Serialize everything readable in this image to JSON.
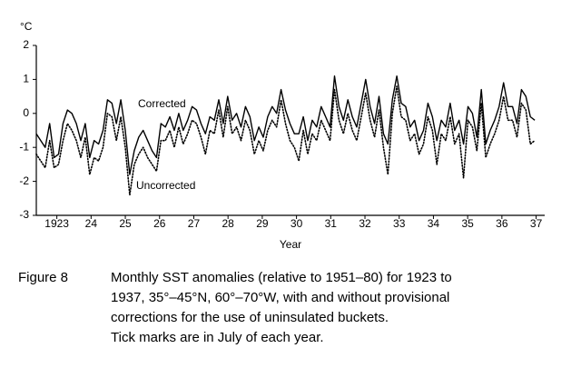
{
  "chart_data": {
    "type": "line",
    "y_unit_label": "°C",
    "x_axis_label": "Year",
    "caption_label": "Figure 8",
    "caption_lines": [
      "Monthly SST anomalies (relative to 1951–80) for 1923 to",
      "1937, 35°–45°N, 60°–70°W, with and without provisional",
      "corrections for the use of uninsulated buckets.",
      "Tick marks are in July of each year."
    ],
    "x": [
      1922.9,
      1923.03,
      1923.16,
      1923.29,
      1923.42,
      1923.55,
      1923.68,
      1923.81,
      1923.94,
      1924.07,
      1924.2,
      1924.33,
      1924.46,
      1924.59,
      1924.72,
      1924.85,
      1924.98,
      1925.11,
      1925.24,
      1925.37,
      1925.5,
      1925.63,
      1925.76,
      1925.89,
      1926.02,
      1926.15,
      1926.28,
      1926.41,
      1926.54,
      1926.67,
      1926.8,
      1926.93,
      1927.06,
      1927.19,
      1927.32,
      1927.45,
      1927.58,
      1927.71,
      1927.84,
      1927.97,
      1928.1,
      1928.23,
      1928.36,
      1928.49,
      1928.62,
      1928.75,
      1928.88,
      1929.01,
      1929.14,
      1929.27,
      1929.4,
      1929.53,
      1929.66,
      1929.79,
      1929.92,
      1930.05,
      1930.18,
      1930.31,
      1930.44,
      1930.57,
      1930.7,
      1930.83,
      1930.96,
      1931.09,
      1931.22,
      1931.35,
      1931.48,
      1931.61,
      1931.74,
      1931.87,
      1932.0,
      1932.13,
      1932.26,
      1932.39,
      1932.52,
      1932.65,
      1932.78,
      1932.91,
      1933.04,
      1933.17,
      1933.3,
      1933.43,
      1933.56,
      1933.69,
      1933.82,
      1933.95,
      1934.08,
      1934.21,
      1934.34,
      1934.47,
      1934.6,
      1934.73,
      1934.86,
      1934.99,
      1935.12,
      1935.25,
      1935.38,
      1935.51,
      1935.64,
      1935.77,
      1935.9,
      1936.03,
      1936.16,
      1936.29,
      1936.42,
      1936.55,
      1936.68,
      1936.81,
      1936.94,
      1937.07,
      1937.2,
      1937.33,
      1937.46
    ],
    "series": [
      {
        "name": "Corrected",
        "color": "#000000",
        "style": "solid",
        "values": [
          -0.6,
          -0.8,
          -1.0,
          -0.3,
          -1.3,
          -1.2,
          -0.3,
          0.1,
          0.0,
          -0.3,
          -0.8,
          -0.3,
          -1.3,
          -0.8,
          -0.9,
          -0.5,
          0.4,
          0.3,
          -0.3,
          0.4,
          -0.5,
          -1.8,
          -1.1,
          -0.7,
          -0.5,
          -0.8,
          -1.1,
          -1.3,
          -0.3,
          -0.4,
          -0.1,
          -0.5,
          0.0,
          -0.5,
          -0.2,
          0.2,
          0.1,
          -0.3,
          -0.6,
          -0.1,
          -0.2,
          0.4,
          -0.3,
          0.5,
          -0.2,
          0.0,
          -0.4,
          0.2,
          -0.1,
          -0.8,
          -0.4,
          -0.7,
          -0.1,
          0.2,
          0.0,
          0.7,
          0.1,
          -0.3,
          -0.6,
          -0.6,
          -0.1,
          -0.8,
          -0.2,
          -0.4,
          0.2,
          -0.1,
          -0.4,
          1.1,
          0.2,
          -0.2,
          0.4,
          -0.1,
          -0.4,
          0.3,
          1.0,
          0.2,
          -0.3,
          0.5,
          -0.6,
          -0.9,
          0.4,
          1.1,
          0.3,
          0.2,
          -0.4,
          -0.2,
          -0.8,
          -0.5,
          0.3,
          -0.1,
          -0.8,
          -0.2,
          -0.4,
          0.3,
          -0.5,
          -0.2,
          -0.9,
          0.2,
          0.0,
          -0.7,
          0.7,
          -0.9,
          -0.5,
          -0.2,
          0.2,
          0.9,
          0.2,
          0.2,
          -0.3,
          0.7,
          0.5,
          -0.1,
          -0.2
        ]
      },
      {
        "name": "Uncorrected",
        "color": "#000000",
        "style": "dotted",
        "values": [
          -1.2,
          -1.4,
          -1.6,
          -0.8,
          -1.6,
          -1.5,
          -0.8,
          -0.3,
          -0.5,
          -0.8,
          -1.3,
          -0.7,
          -1.8,
          -1.3,
          -1.4,
          -1.0,
          0.0,
          -0.1,
          -0.8,
          -0.1,
          -1.0,
          -2.4,
          -1.5,
          -1.2,
          -1.0,
          -1.3,
          -1.5,
          -1.7,
          -0.8,
          -0.8,
          -0.5,
          -1.0,
          -0.4,
          -0.9,
          -0.6,
          -0.2,
          -0.3,
          -0.7,
          -1.2,
          -0.5,
          -0.6,
          0.1,
          -0.7,
          0.2,
          -0.6,
          -0.4,
          -0.8,
          -0.2,
          -0.5,
          -1.2,
          -0.8,
          -1.1,
          -0.5,
          -0.2,
          -0.4,
          0.4,
          -0.3,
          -0.8,
          -1.0,
          -1.4,
          -0.5,
          -1.2,
          -0.6,
          -0.8,
          -0.2,
          -0.5,
          -0.8,
          0.7,
          -0.2,
          -0.6,
          0.0,
          -0.5,
          -0.8,
          -0.1,
          0.6,
          -0.2,
          -0.7,
          0.1,
          -1.0,
          -1.8,
          0.0,
          0.8,
          -0.1,
          -0.2,
          -0.8,
          -0.6,
          -1.2,
          -0.9,
          -0.1,
          -0.5,
          -1.5,
          -0.6,
          -0.8,
          -0.1,
          -0.9,
          -0.6,
          -1.9,
          -0.2,
          -0.4,
          -1.1,
          0.3,
          -1.3,
          -0.9,
          -0.6,
          -0.2,
          0.5,
          -0.2,
          -0.2,
          -0.7,
          0.3,
          0.1,
          -0.9,
          -0.8
        ]
      }
    ],
    "xlim": [
      1922.9,
      1937.75
    ],
    "ylim": [
      -3,
      2
    ],
    "yticks": [
      -3,
      -2,
      -1,
      0,
      1,
      2
    ],
    "xticks": [
      {
        "value": 1923.5,
        "label": "1923"
      },
      {
        "value": 1924.5,
        "label": "24"
      },
      {
        "value": 1925.5,
        "label": "25"
      },
      {
        "value": 1926.5,
        "label": "26"
      },
      {
        "value": 1927.5,
        "label": "27"
      },
      {
        "value": 1928.5,
        "label": "28"
      },
      {
        "value": 1929.5,
        "label": "29"
      },
      {
        "value": 1930.5,
        "label": "30"
      },
      {
        "value": 1931.5,
        "label": "31"
      },
      {
        "value": 1932.5,
        "label": "32"
      },
      {
        "value": 1933.5,
        "label": "33"
      },
      {
        "value": 1934.5,
        "label": "34"
      },
      {
        "value": 1935.5,
        "label": "35"
      },
      {
        "value": 1936.5,
        "label": "36"
      },
      {
        "value": 1937.5,
        "label": "37"
      }
    ],
    "grid": false
  }
}
